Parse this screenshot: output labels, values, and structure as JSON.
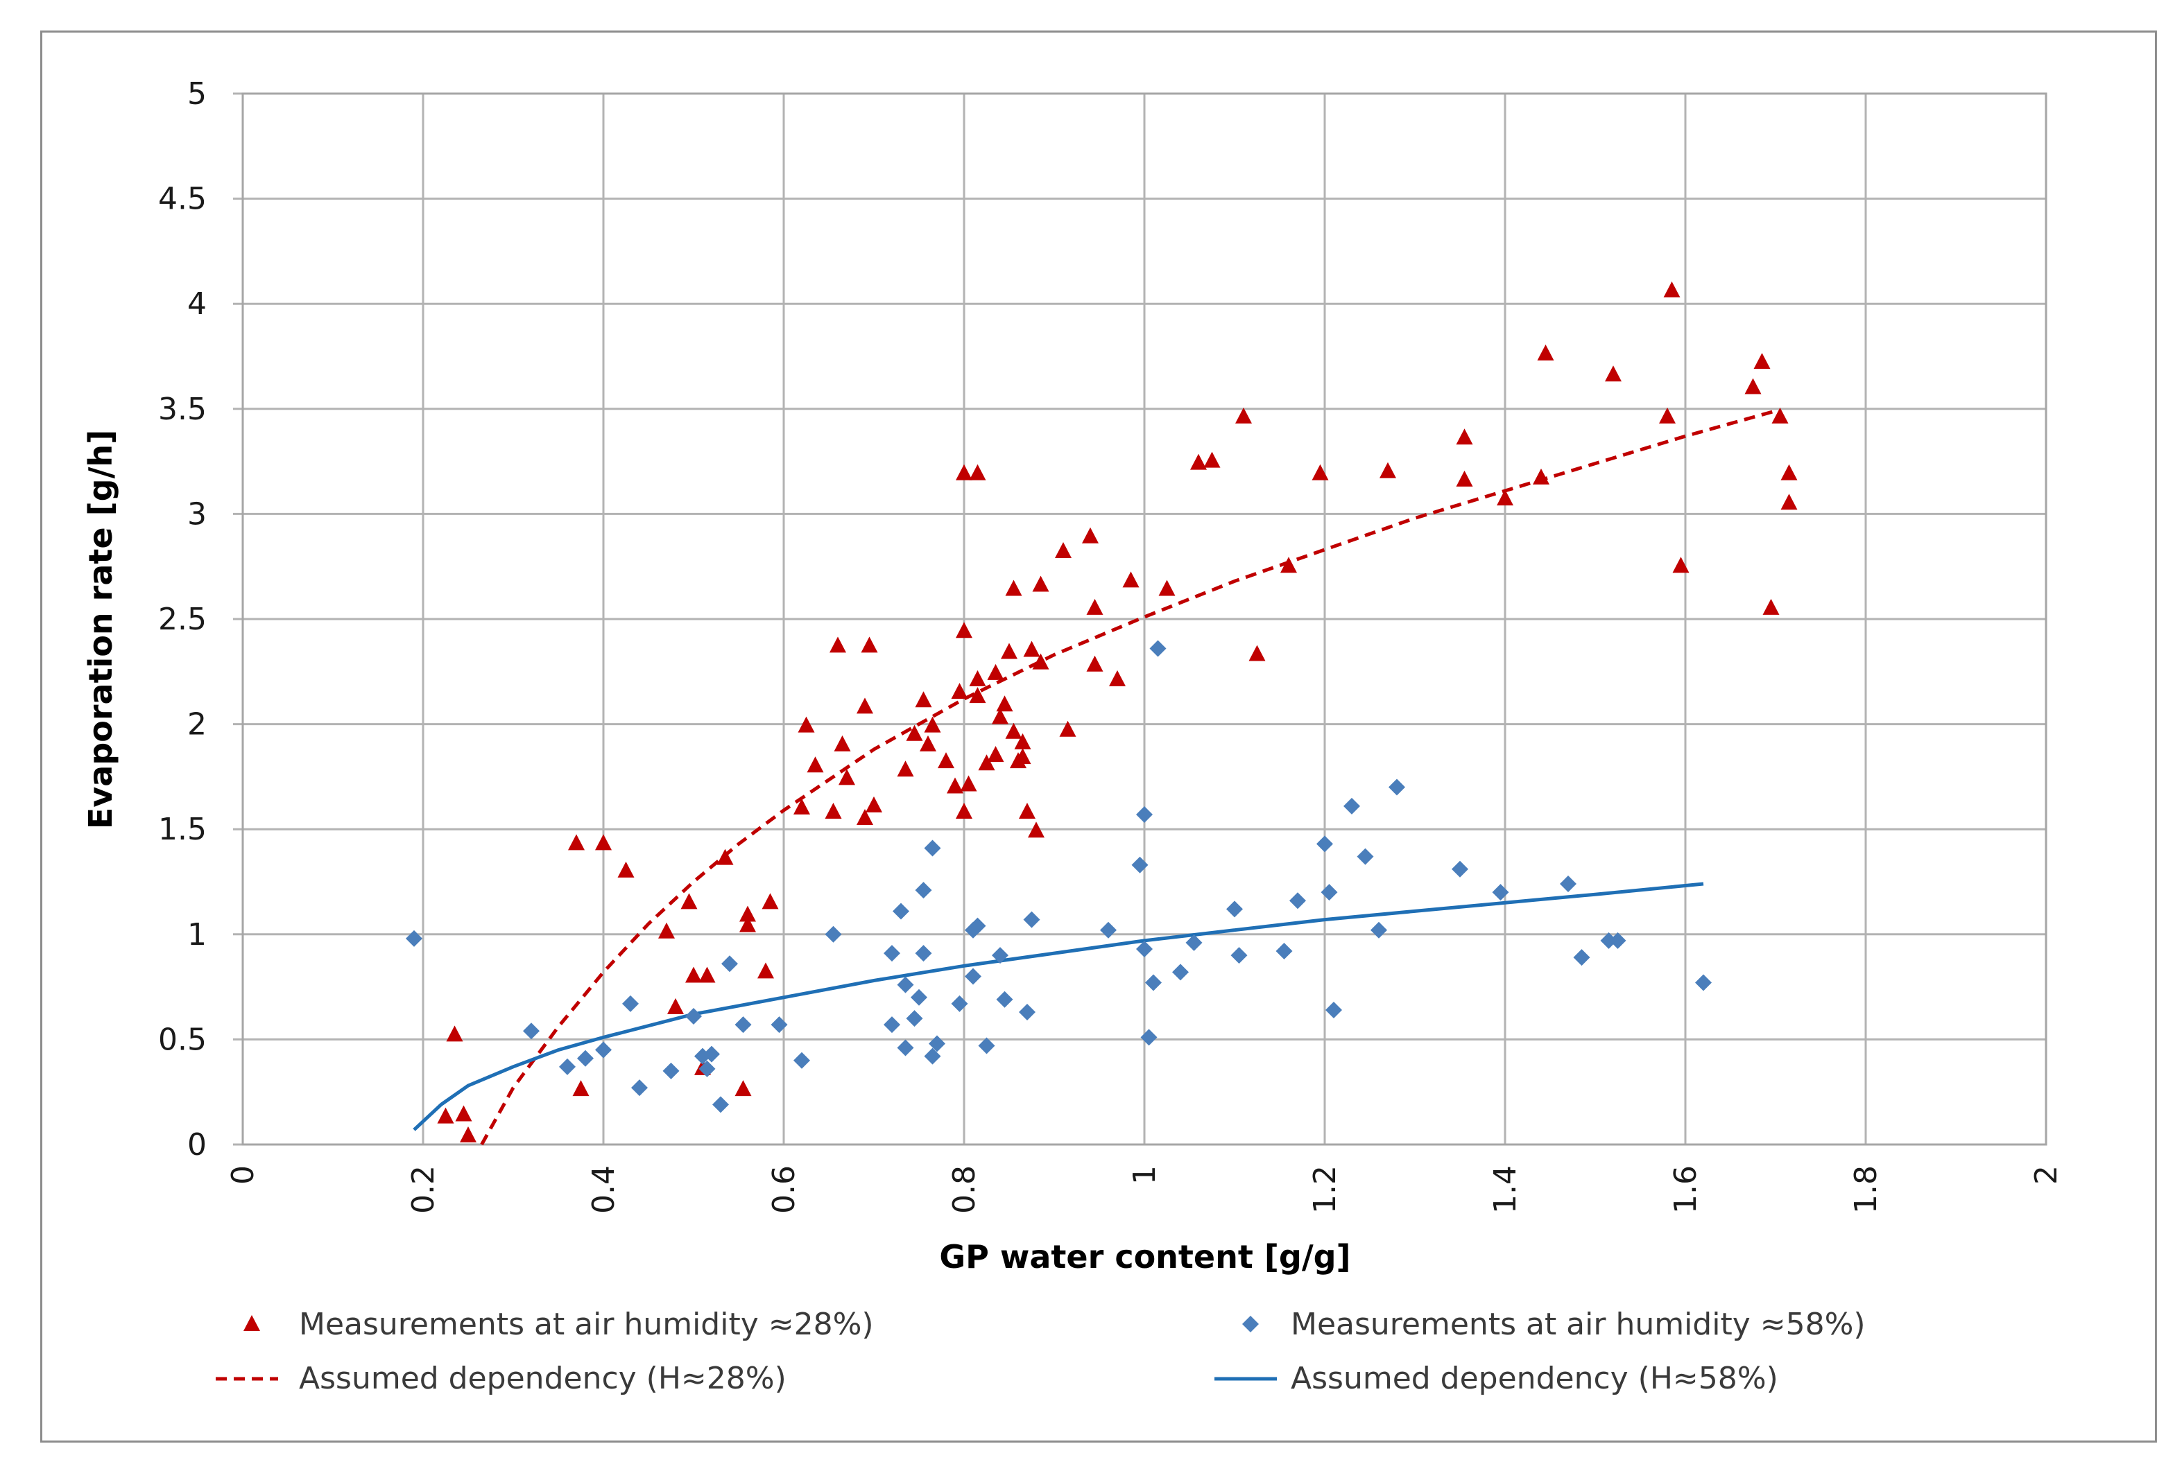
{
  "chart_data": {
    "type": "scatter",
    "title": "",
    "xlabel": "GP water content [g/g]",
    "ylabel": "Evaporation rate [g/h]",
    "xlim": [
      0,
      2
    ],
    "ylim": [
      0,
      5
    ],
    "x_ticks": [
      "0",
      "0.2",
      "0.4",
      "0.6",
      "0.8",
      "1",
      "1.2",
      "1.4",
      "1.6",
      "1.8",
      "2"
    ],
    "y_ticks": [
      "0",
      "0.5",
      "1",
      "1.5",
      "2",
      "2.5",
      "3",
      "3.5",
      "4",
      "4.5",
      "5"
    ],
    "grid": true,
    "legend_position": "bottom",
    "series": [
      {
        "name": "Measurements at air humidity ≈28%)",
        "kind": "scatter",
        "marker": "triangle",
        "color": "#c00000",
        "points": [
          [
            0.225,
            0.13
          ],
          [
            0.235,
            0.52
          ],
          [
            0.245,
            0.14
          ],
          [
            0.25,
            0.04
          ],
          [
            0.37,
            1.43
          ],
          [
            0.375,
            0.26
          ],
          [
            0.4,
            1.43
          ],
          [
            0.425,
            1.3
          ],
          [
            0.47,
            1.01
          ],
          [
            0.48,
            0.65
          ],
          [
            0.495,
            1.15
          ],
          [
            0.5,
            0.8
          ],
          [
            0.51,
            0.36
          ],
          [
            0.515,
            0.8
          ],
          [
            0.535,
            1.36
          ],
          [
            0.555,
            0.26
          ],
          [
            0.56,
            1.04
          ],
          [
            0.56,
            1.09
          ],
          [
            0.58,
            0.82
          ],
          [
            0.585,
            1.15
          ],
          [
            0.62,
            1.6
          ],
          [
            0.625,
            1.99
          ],
          [
            0.635,
            1.8
          ],
          [
            0.655,
            1.58
          ],
          [
            0.66,
            2.37
          ],
          [
            0.665,
            1.9
          ],
          [
            0.67,
            1.74
          ],
          [
            0.69,
            1.55
          ],
          [
            0.69,
            2.08
          ],
          [
            0.695,
            2.37
          ],
          [
            0.7,
            1.61
          ],
          [
            0.735,
            1.78
          ],
          [
            0.745,
            1.95
          ],
          [
            0.755,
            2.11
          ],
          [
            0.76,
            1.9
          ],
          [
            0.765,
            1.99
          ],
          [
            0.78,
            1.82
          ],
          [
            0.79,
            1.7
          ],
          [
            0.795,
            2.15
          ],
          [
            0.8,
            1.58
          ],
          [
            0.8,
            2.44
          ],
          [
            0.8,
            3.19
          ],
          [
            0.805,
            1.71
          ],
          [
            0.815,
            2.21
          ],
          [
            0.815,
            2.13
          ],
          [
            0.815,
            3.19
          ],
          [
            0.825,
            1.81
          ],
          [
            0.835,
            1.85
          ],
          [
            0.835,
            2.24
          ],
          [
            0.84,
            2.03
          ],
          [
            0.845,
            2.09
          ],
          [
            0.85,
            2.34
          ],
          [
            0.855,
            2.64
          ],
          [
            0.855,
            1.96
          ],
          [
            0.86,
            1.82
          ],
          [
            0.865,
            1.84
          ],
          [
            0.865,
            1.91
          ],
          [
            0.87,
            1.58
          ],
          [
            0.875,
            2.35
          ],
          [
            0.88,
            1.49
          ],
          [
            0.885,
            2.29
          ],
          [
            0.885,
            2.66
          ],
          [
            0.91,
            2.82
          ],
          [
            0.915,
            1.97
          ],
          [
            0.94,
            2.89
          ],
          [
            0.945,
            2.28
          ],
          [
            0.945,
            2.55
          ],
          [
            0.97,
            2.21
          ],
          [
            0.985,
            2.68
          ],
          [
            1.025,
            2.64
          ],
          [
            1.06,
            3.24
          ],
          [
            1.075,
            3.25
          ],
          [
            1.11,
            3.46
          ],
          [
            1.125,
            2.33
          ],
          [
            1.16,
            2.75
          ],
          [
            1.195,
            3.19
          ],
          [
            1.27,
            3.2
          ],
          [
            1.355,
            3.16
          ],
          [
            1.355,
            3.36
          ],
          [
            1.4,
            3.07
          ],
          [
            1.44,
            3.17
          ],
          [
            1.445,
            3.76
          ],
          [
            1.52,
            3.66
          ],
          [
            1.58,
            3.46
          ],
          [
            1.585,
            4.06
          ],
          [
            1.595,
            2.75
          ],
          [
            1.675,
            3.6
          ],
          [
            1.685,
            3.72
          ],
          [
            1.695,
            2.55
          ],
          [
            1.705,
            3.46
          ],
          [
            1.715,
            3.19
          ],
          [
            1.715,
            3.05
          ]
        ]
      },
      {
        "name": "Measurements at air humidity ≈58%)",
        "kind": "scatter",
        "marker": "diamond",
        "color": "#4a7ebb",
        "points": [
          [
            0.19,
            0.98
          ],
          [
            0.32,
            0.54
          ],
          [
            0.36,
            0.37
          ],
          [
            0.38,
            0.41
          ],
          [
            0.4,
            0.45
          ],
          [
            0.43,
            0.67
          ],
          [
            0.44,
            0.27
          ],
          [
            0.475,
            0.35
          ],
          [
            0.5,
            0.61
          ],
          [
            0.51,
            0.42
          ],
          [
            0.515,
            0.36
          ],
          [
            0.52,
            0.43
          ],
          [
            0.53,
            0.19
          ],
          [
            0.54,
            0.86
          ],
          [
            0.555,
            0.57
          ],
          [
            0.595,
            0.57
          ],
          [
            0.62,
            0.4
          ],
          [
            0.655,
            1.0
          ],
          [
            0.72,
            0.91
          ],
          [
            0.72,
            0.57
          ],
          [
            0.73,
            1.11
          ],
          [
            0.735,
            0.76
          ],
          [
            0.735,
            0.46
          ],
          [
            0.745,
            0.6
          ],
          [
            0.75,
            0.7
          ],
          [
            0.755,
            1.21
          ],
          [
            0.755,
            0.91
          ],
          [
            0.765,
            0.42
          ],
          [
            0.765,
            1.41
          ],
          [
            0.77,
            0.48
          ],
          [
            0.795,
            0.67
          ],
          [
            0.81,
            0.8
          ],
          [
            0.81,
            1.02
          ],
          [
            0.815,
            1.04
          ],
          [
            0.825,
            0.47
          ],
          [
            0.84,
            0.9
          ],
          [
            0.845,
            0.69
          ],
          [
            0.87,
            0.63
          ],
          [
            0.875,
            1.07
          ],
          [
            0.96,
            1.02
          ],
          [
            0.995,
            1.33
          ],
          [
            1.0,
            0.93
          ],
          [
            1.0,
            1.57
          ],
          [
            1.005,
            0.51
          ],
          [
            1.01,
            0.77
          ],
          [
            1.015,
            2.36
          ],
          [
            1.04,
            0.82
          ],
          [
            1.055,
            0.96
          ],
          [
            1.1,
            1.12
          ],
          [
            1.105,
            0.9
          ],
          [
            1.155,
            0.92
          ],
          [
            1.17,
            1.16
          ],
          [
            1.2,
            1.43
          ],
          [
            1.205,
            1.2
          ],
          [
            1.21,
            0.64
          ],
          [
            1.23,
            1.61
          ],
          [
            1.245,
            1.37
          ],
          [
            1.26,
            1.02
          ],
          [
            1.28,
            1.7
          ],
          [
            1.35,
            1.31
          ],
          [
            1.395,
            1.2
          ],
          [
            1.47,
            1.24
          ],
          [
            1.485,
            0.89
          ],
          [
            1.515,
            0.97
          ],
          [
            1.525,
            0.97
          ],
          [
            1.62,
            0.77
          ]
        ]
      },
      {
        "name": "Assumed dependency (H≈28%)",
        "kind": "line",
        "style": "dashed",
        "color": "#c00000",
        "points": [
          [
            0.265,
            0.0
          ],
          [
            0.3,
            0.27
          ],
          [
            0.35,
            0.56
          ],
          [
            0.4,
            0.82
          ],
          [
            0.45,
            1.05
          ],
          [
            0.5,
            1.25
          ],
          [
            0.55,
            1.43
          ],
          [
            0.6,
            1.59
          ],
          [
            0.7,
            1.88
          ],
          [
            0.8,
            2.12
          ],
          [
            0.9,
            2.33
          ],
          [
            1.0,
            2.51
          ],
          [
            1.1,
            2.68
          ],
          [
            1.2,
            2.83
          ],
          [
            1.3,
            2.98
          ],
          [
            1.4,
            3.11
          ],
          [
            1.5,
            3.24
          ],
          [
            1.6,
            3.37
          ],
          [
            1.7,
            3.49
          ]
        ]
      },
      {
        "name": "Assumed dependency (H≈58%)",
        "kind": "line",
        "style": "solid",
        "color": "#1f6fb5",
        "points": [
          [
            0.19,
            0.07
          ],
          [
            0.22,
            0.19
          ],
          [
            0.25,
            0.28
          ],
          [
            0.3,
            0.37
          ],
          [
            0.35,
            0.45
          ],
          [
            0.4,
            0.51
          ],
          [
            0.5,
            0.62
          ],
          [
            0.6,
            0.7
          ],
          [
            0.7,
            0.78
          ],
          [
            0.8,
            0.85
          ],
          [
            0.9,
            0.91
          ],
          [
            1.0,
            0.97
          ],
          [
            1.1,
            1.02
          ],
          [
            1.2,
            1.07
          ],
          [
            1.3,
            1.11
          ],
          [
            1.4,
            1.15
          ],
          [
            1.5,
            1.19
          ],
          [
            1.62,
            1.24
          ]
        ]
      }
    ]
  }
}
